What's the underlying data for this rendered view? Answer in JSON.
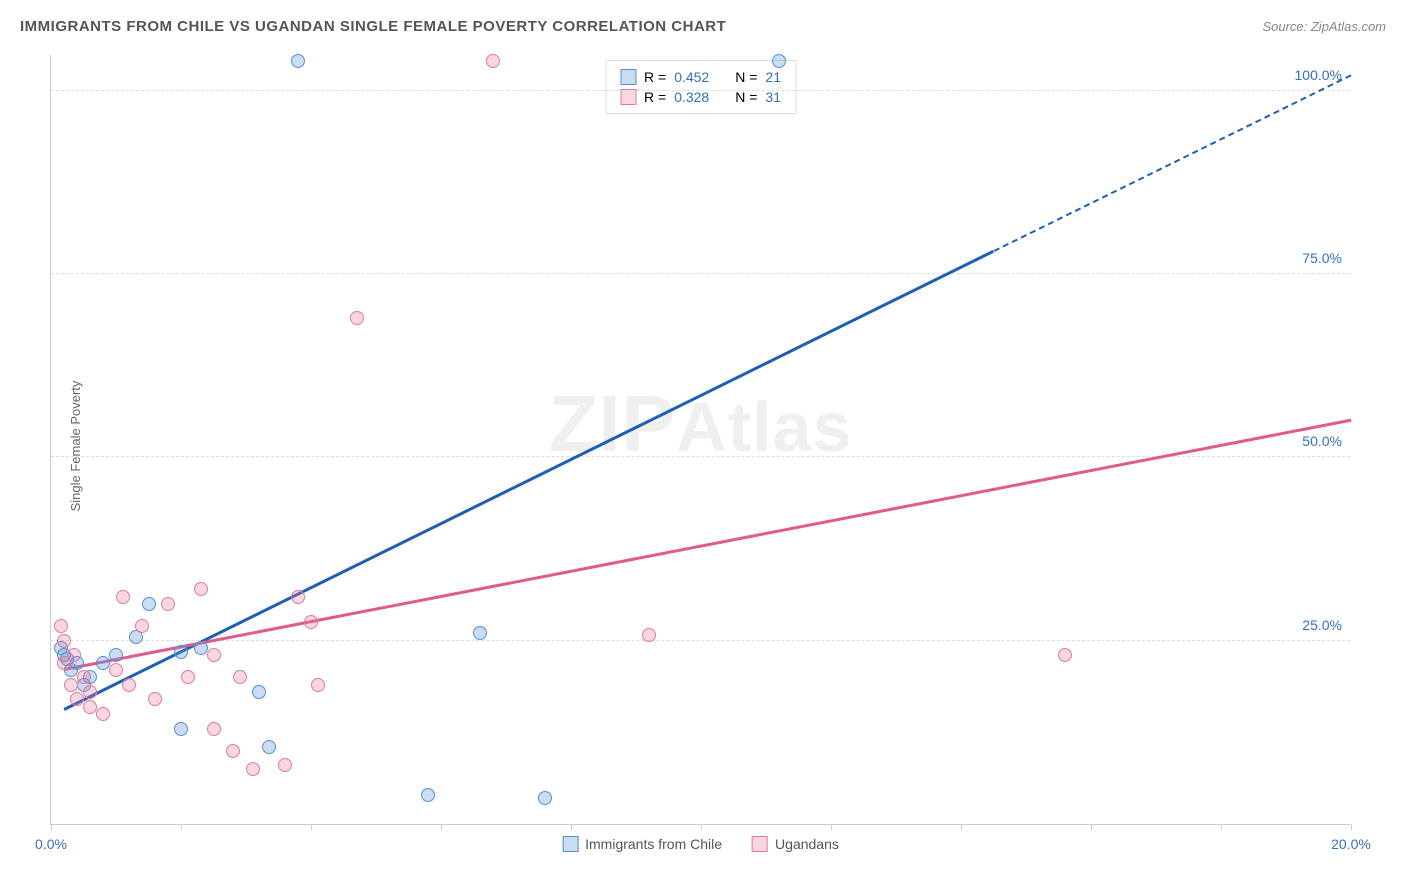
{
  "title": "IMMIGRANTS FROM CHILE VS UGANDAN SINGLE FEMALE POVERTY CORRELATION CHART",
  "source": "Source: ZipAtlas.com",
  "y_axis_label": "Single Female Poverty",
  "watermark_zip": "ZIP",
  "watermark_atlas": "Atlas",
  "chart": {
    "type": "scatter-with-regression",
    "xlim": [
      0,
      20
    ],
    "ylim": [
      0,
      105
    ],
    "x_ticks": [
      0,
      2,
      4,
      6,
      8,
      10,
      12,
      14,
      16,
      18,
      20
    ],
    "x_tick_labels": {
      "0": "0.0%",
      "20": "20.0%"
    },
    "y_ticks": [
      25,
      50,
      75,
      100
    ],
    "y_tick_labels": {
      "25": "25.0%",
      "50": "50.0%",
      "75": "75.0%",
      "100": "100.0%"
    },
    "background_color": "#ffffff",
    "grid_color": "#dddddd",
    "axis_color": "#cccccc",
    "tick_label_color": "#3670b8",
    "point_radius": 7,
    "series": [
      {
        "name": "Immigrants from Chile",
        "color_fill": "rgba(99,155,215,0.35)",
        "color_stroke": "#5a8fce",
        "line_color": "#1e5fb4",
        "R": "0.452",
        "N": "21",
        "trend": {
          "x1": 0.2,
          "y1": 15.5,
          "x2": 14.5,
          "y2": 78,
          "dash_x2": 20,
          "dash_y2": 102
        },
        "points": [
          {
            "x": 3.8,
            "y": 104
          },
          {
            "x": 11.2,
            "y": 104
          },
          {
            "x": 0.15,
            "y": 24
          },
          {
            "x": 0.2,
            "y": 23
          },
          {
            "x": 0.25,
            "y": 22.5
          },
          {
            "x": 0.3,
            "y": 21
          },
          {
            "x": 0.4,
            "y": 22
          },
          {
            "x": 0.5,
            "y": 19
          },
          {
            "x": 0.6,
            "y": 20
          },
          {
            "x": 0.8,
            "y": 22
          },
          {
            "x": 1.0,
            "y": 23
          },
          {
            "x": 1.3,
            "y": 25.5
          },
          {
            "x": 1.5,
            "y": 30
          },
          {
            "x": 2.0,
            "y": 23.5
          },
          {
            "x": 2.3,
            "y": 24
          },
          {
            "x": 2.0,
            "y": 13
          },
          {
            "x": 3.2,
            "y": 18
          },
          {
            "x": 3.35,
            "y": 10.5
          },
          {
            "x": 6.6,
            "y": 26
          },
          {
            "x": 5.8,
            "y": 4
          },
          {
            "x": 7.6,
            "y": 3.5
          }
        ]
      },
      {
        "name": "Ugandans",
        "color_fill": "rgba(232,120,160,0.30)",
        "color_stroke": "#df7aa0",
        "line_color": "#e05a8a",
        "R": "0.328",
        "N": "31",
        "trend": {
          "x1": 0.2,
          "y1": 21,
          "x2": 20,
          "y2": 55
        },
        "points": [
          {
            "x": 6.8,
            "y": 104
          },
          {
            "x": 4.7,
            "y": 69
          },
          {
            "x": 0.15,
            "y": 27
          },
          {
            "x": 0.2,
            "y": 25
          },
          {
            "x": 0.2,
            "y": 22
          },
          {
            "x": 0.3,
            "y": 19
          },
          {
            "x": 0.35,
            "y": 23
          },
          {
            "x": 0.4,
            "y": 17
          },
          {
            "x": 0.5,
            "y": 20
          },
          {
            "x": 0.6,
            "y": 18
          },
          {
            "x": 0.6,
            "y": 16
          },
          {
            "x": 0.8,
            "y": 15
          },
          {
            "x": 1.0,
            "y": 21
          },
          {
            "x": 1.1,
            "y": 31
          },
          {
            "x": 1.2,
            "y": 19
          },
          {
            "x": 1.4,
            "y": 27
          },
          {
            "x": 1.6,
            "y": 17
          },
          {
            "x": 1.8,
            "y": 30
          },
          {
            "x": 2.1,
            "y": 20
          },
          {
            "x": 2.3,
            "y": 32
          },
          {
            "x": 2.5,
            "y": 23
          },
          {
            "x": 2.5,
            "y": 13
          },
          {
            "x": 2.8,
            "y": 10
          },
          {
            "x": 2.9,
            "y": 20
          },
          {
            "x": 3.1,
            "y": 7.5
          },
          {
            "x": 3.6,
            "y": 8
          },
          {
            "x": 3.8,
            "y": 31
          },
          {
            "x": 4.0,
            "y": 27.5
          },
          {
            "x": 4.1,
            "y": 19
          },
          {
            "x": 9.2,
            "y": 25.8
          },
          {
            "x": 15.6,
            "y": 23
          }
        ]
      }
    ]
  },
  "legend_top": {
    "r_label": "R =",
    "n_label": "N ="
  },
  "colors": {
    "title": "#555555",
    "source": "#888888",
    "axis_label": "#666666",
    "legend_text": "#555555",
    "stat_value": "#3670b8"
  }
}
